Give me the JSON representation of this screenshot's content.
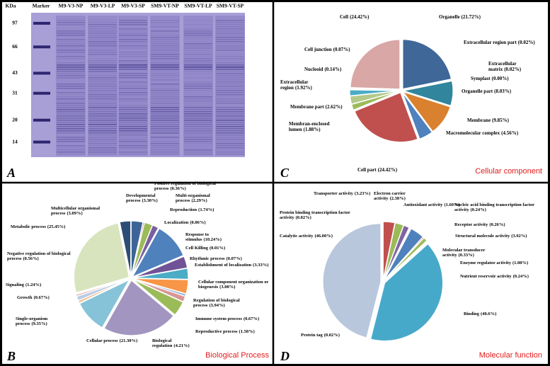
{
  "chart_data": [
    {
      "type": "gel",
      "panel_label": "A",
      "y_label": "KDa",
      "categories": [
        "Marker",
        "M9-V3-NP",
        "M9-V3-LP",
        "M9-V3-SP",
        "SM9-VT-NP",
        "SM9-VT-LP",
        "SM9-VT-SP"
      ],
      "ylim": [
        12,
        110
      ],
      "yticks": [
        97,
        66,
        43,
        31,
        20,
        14
      ],
      "log_scale": true,
      "color": "#a79fd6"
    },
    {
      "type": "pie",
      "panel_label": "C",
      "title": "Cellular component",
      "categories": [
        "Organelle",
        "Extracellular region part",
        "Extracellular matrix",
        "Symplast",
        "Organelle part",
        "Membrane",
        "Macromolecular complex",
        "Cell part",
        "Membran-enclosed lumen",
        "Membrane part",
        "Extracellular region",
        "Nucleoid",
        "Cell junction",
        "Cell"
      ],
      "values": [
        21.72,
        0.02,
        0.02,
        0.0,
        8.03,
        9.85,
        4.56,
        24.42,
        1.88,
        2.62,
        1.92,
        0.14,
        0.07,
        24.42
      ],
      "value_labels": [
        "(21.72%)",
        "(0.02%)",
        "(0.02%)",
        "(0.00%)",
        "(8.03%)",
        "(9.85%)",
        "(4.56%)",
        "(24.42%)",
        "(1.88%)",
        "(2.62%)",
        "(1.92%)",
        "(0.14%)",
        "(0.07%)",
        "(24.42%)"
      ],
      "colors": [
        "#3f6798",
        "#8b3a38",
        "#76923c",
        "#5f497a",
        "#31859c",
        "#d9812e",
        "#4f81bd",
        "#c0504d",
        "#9bbb59",
        "#b3c98b",
        "#4bacc6",
        "#2c4d75",
        "#7f2c2a",
        "#d9a7a6"
      ]
    },
    {
      "type": "pie",
      "panel_label": "B",
      "title": "Biological Process",
      "categories": [
        "Developmental process",
        "Positive regulation of biological process",
        "Multi-organismal process",
        "Reproduction",
        "Localization",
        "Response to stimulus",
        "Cell Killing",
        "Rhythmic process",
        "Establishment of localization",
        "Cellular component organization or biogenesis",
        "Regulation of biological process",
        "Immune system process",
        "Reproductive process",
        "Biological regulation",
        "Cellular process",
        "Single-organism process",
        "Growth",
        "Signaling",
        "Negative regulation of biological process",
        "Metabolic process",
        "Multicellular organismal process"
      ],
      "values": [
        3.3,
        0.36,
        2.29,
        1.74,
        0.06,
        10.24,
        0.01,
        0.07,
        3.33,
        3.08,
        3.94,
        0.67,
        1.58,
        4.21,
        21.3,
        9.35,
        0.67,
        1.24,
        0.56,
        25.45,
        3.09
      ],
      "value_labels": [
        "(3.30%)",
        "(0.36%)",
        "(2.29%)",
        "(1.74%)",
        "(0.06%)",
        "(10.24%)",
        "(0.01%)",
        "(0.07%)",
        "(3.33%)",
        "(3.08%)",
        "(3.94%)",
        "(0.67%)",
        "(1.58%)",
        "(4.21%)",
        "(21.30%)",
        "(9.35%)",
        "(0.67%)",
        "(1.24%)",
        "(0.56%)",
        "(25.45%)",
        "(3.09%)"
      ],
      "colors": [
        "#3d6496",
        "#c0504d",
        "#9bbb59",
        "#7a5fa0",
        "#4bacc6",
        "#4f81bd",
        "#c0504d",
        "#8064a2",
        "#6f5396",
        "#4bacc6",
        "#f79646",
        "#95b3d7",
        "#d99694",
        "#9bbb59",
        "#a295c0",
        "#86c3d8",
        "#f5b581",
        "#b9cde5",
        "#e6b9b8",
        "#d7e4bd",
        "#2c4d75"
      ]
    },
    {
      "type": "pie",
      "panel_label": "D",
      "title": "Molecular function",
      "categories": [
        "Transporter activity",
        "Electron carrier activity",
        "Antioxidant activity",
        "Nucleic acid binding transcription factor activity",
        "Receptor activity",
        "Structural molecule activity",
        "Molecular transducer activity",
        "Enzyme regulator activity",
        "Nutrient reservoir activity",
        "Binding",
        "Protein tag",
        "Catalytic activity",
        "Protein binding transcription factor activity"
      ],
      "values": [
        3.23,
        2.38,
        1.6,
        0.24,
        0.26,
        3.92,
        0.33,
        1.08,
        0.24,
        40.6,
        0.02,
        46.0,
        0.02
      ],
      "value_labels": [
        "(3.23%)",
        "(2.38%)",
        "(1.60%)",
        "(0.24%)",
        "(0.26%)",
        "(3.92%)",
        "(0.33%)",
        "(1.08%)",
        "(0.24%)",
        "(40.6%)",
        "(0.02%)",
        "(46.00%)",
        "(0.02%)"
      ],
      "colors": [
        "#c0504d",
        "#9bbb59",
        "#8064a2",
        "#4bacc6",
        "#f79646",
        "#4f81bd",
        "#c0504d",
        "#9bbb59",
        "#8064a2",
        "#47a9c9",
        "#f79646",
        "#b9c7dd",
        "#95b3d7"
      ]
    }
  ]
}
